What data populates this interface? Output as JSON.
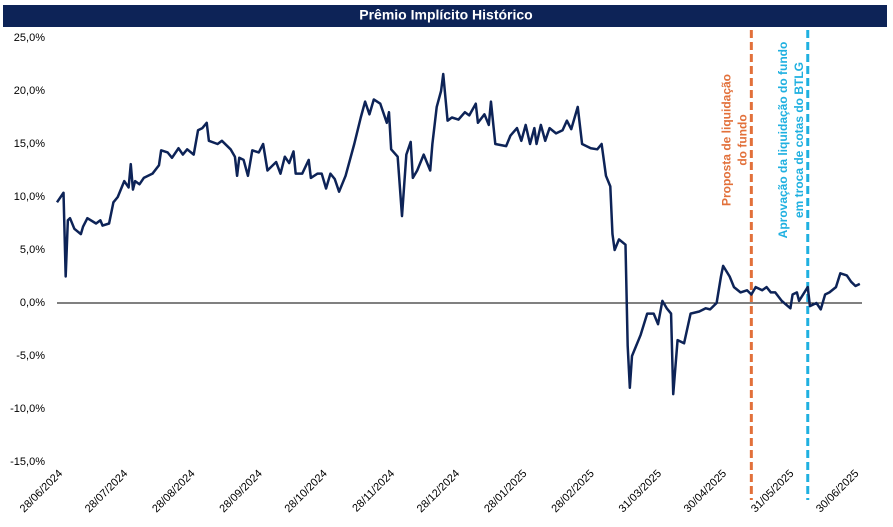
{
  "chart_data": {
    "type": "line",
    "title": "Prêmio Implícito Histórico",
    "x": [
      "2024-06-28",
      "2024-07-01",
      "2024-07-02",
      "2024-07-03",
      "2024-07-04",
      "2024-07-06",
      "2024-07-09",
      "2024-07-10",
      "2024-07-12",
      "2024-07-16",
      "2024-07-18",
      "2024-07-19",
      "2024-07-22",
      "2024-07-24",
      "2024-07-26",
      "2024-07-29",
      "2024-07-31",
      "2024-08-01",
      "2024-08-02",
      "2024-08-03",
      "2024-08-05",
      "2024-08-07",
      "2024-08-11",
      "2024-08-14",
      "2024-08-15",
      "2024-08-18",
      "2024-08-20",
      "2024-08-23",
      "2024-08-25",
      "2024-08-27",
      "2024-08-30",
      "2024-09-01",
      "2024-09-03",
      "2024-09-05",
      "2024-09-06",
      "2024-09-10",
      "2024-09-12",
      "2024-09-16",
      "2024-09-18",
      "2024-09-19",
      "2024-09-20",
      "2024-09-22",
      "2024-09-24",
      "2024-09-26",
      "2024-09-29",
      "2024-10-01",
      "2024-10-03",
      "2024-10-07",
      "2024-10-09",
      "2024-10-11",
      "2024-10-13",
      "2024-10-15",
      "2024-10-16",
      "2024-10-19",
      "2024-10-22",
      "2024-10-23",
      "2024-10-26",
      "2024-10-28",
      "2024-10-30",
      "2024-11-01",
      "2024-11-03",
      "2024-11-05",
      "2024-11-08",
      "2024-11-10",
      "2024-11-12",
      "2024-11-15",
      "2024-11-17",
      "2024-11-19",
      "2024-11-21",
      "2024-11-24",
      "2024-11-27",
      "2024-11-28",
      "2024-11-29",
      "2024-12-02",
      "2024-12-04",
      "2024-12-06",
      "2024-12-08",
      "2024-12-09",
      "2024-12-11",
      "2024-12-14",
      "2024-12-17",
      "2024-12-18",
      "2024-12-20",
      "2024-12-22",
      "2024-12-23",
      "2024-12-25",
      "2024-12-27",
      "2024-12-30",
      "2025-01-02",
      "2025-01-04",
      "2025-01-07",
      "2025-01-08",
      "2025-01-11",
      "2025-01-13",
      "2025-01-14",
      "2025-01-16",
      "2025-01-21",
      "2025-01-23",
      "2025-01-26",
      "2025-01-28",
      "2025-01-30",
      "2025-02-01",
      "2025-02-03",
      "2025-02-04",
      "2025-02-06",
      "2025-02-08",
      "2025-02-10",
      "2025-02-13",
      "2025-02-16",
      "2025-02-18",
      "2025-02-20",
      "2025-02-23",
      "2025-02-25",
      "2025-03-01",
      "2025-03-04",
      "2025-03-06",
      "2025-03-08",
      "2025-03-10",
      "2025-03-11",
      "2025-03-12",
      "2025-03-14",
      "2025-03-17",
      "2025-03-18",
      "2025-03-19",
      "2025-03-20",
      "2025-03-24",
      "2025-03-27",
      "2025-03-30",
      "2025-04-01",
      "2025-04-03",
      "2025-04-05",
      "2025-04-07",
      "2025-04-08",
      "2025-04-10",
      "2025-04-13",
      "2025-04-16",
      "2025-04-20",
      "2025-04-23",
      "2025-04-25",
      "2025-04-28",
      "2025-04-30",
      "2025-05-01",
      "2025-05-04",
      "2025-05-06",
      "2025-05-09",
      "2025-05-12",
      "2025-05-14",
      "2025-05-16",
      "2025-05-19",
      "2025-05-21",
      "2025-05-23",
      "2025-05-25",
      "2025-05-28",
      "2025-06-01",
      "2025-06-02",
      "2025-06-04",
      "2025-06-05",
      "2025-06-09",
      "2025-06-10",
      "2025-06-13",
      "2025-06-15",
      "2025-06-17",
      "2025-06-19",
      "2025-06-22",
      "2025-06-24",
      "2025-06-27",
      "2025-06-29",
      "2025-07-01",
      "2025-07-03"
    ],
    "series": [
      {
        "color": "#0d2357",
        "values": [
          9.5,
          10.4,
          2.5,
          7.8,
          8.0,
          7.0,
          6.5,
          7.2,
          8.0,
          7.5,
          7.8,
          7.3,
          7.5,
          9.5,
          10.0,
          11.5,
          10.9,
          13.1,
          10.7,
          11.5,
          11.2,
          11.8,
          12.2,
          13.0,
          14.4,
          14.2,
          13.7,
          14.6,
          14.0,
          14.5,
          14.0,
          16.3,
          16.5,
          17.0,
          15.3,
          15.0,
          15.3,
          14.5,
          13.8,
          12.0,
          13.7,
          13.5,
          12.0,
          14.4,
          14.2,
          15.0,
          12.5,
          13.3,
          12.2,
          13.8,
          13.2,
          14.3,
          12.2,
          12.2,
          13.5,
          11.8,
          12.2,
          12.2,
          10.8,
          12.2,
          11.7,
          10.5,
          12.0,
          13.5,
          15.0,
          17.5,
          19.0,
          17.8,
          19.2,
          18.8,
          17.0,
          18.0,
          14.5,
          13.8,
          8.2,
          14.0,
          15.2,
          11.8,
          12.5,
          14.0,
          12.5,
          15.0,
          18.5,
          20.0,
          21.6,
          17.2,
          17.5,
          17.3,
          18.0,
          17.7,
          18.8,
          17.0,
          17.8,
          16.8,
          19.0,
          15.0,
          14.8,
          15.8,
          16.5,
          15.3,
          16.8,
          15.0,
          16.5,
          15.0,
          16.8,
          15.3,
          16.5,
          16.0,
          16.3,
          17.2,
          16.4,
          18.5,
          15.0,
          14.6,
          14.5,
          15.0,
          12.0,
          11.0,
          6.5,
          5.0,
          6.0,
          5.5,
          -4.0,
          -8.0,
          -5.0,
          -3.0,
          -1.0,
          -1.0,
          -2.0,
          0.2,
          -0.5,
          -1.0,
          -8.6,
          -3.5,
          -3.8,
          -1.0,
          -0.8,
          -0.5,
          -0.6,
          0.0,
          2.5,
          3.5,
          2.5,
          1.5,
          1.0,
          1.2,
          0.8,
          1.5,
          1.2,
          1.5,
          1.0,
          1.0,
          0.2,
          -0.5,
          0.8,
          1.0,
          0.2,
          1.5,
          -0.3,
          0.0,
          -0.6,
          0.8,
          1.0,
          1.5,
          2.8,
          2.6,
          2.0,
          1.6,
          1.8
        ]
      }
    ],
    "xlim": [
      "2024-06-28",
      "2025-07-04"
    ],
    "xticks": [
      {
        "value": "2024-06-28",
        "label": "28/06/2024"
      },
      {
        "value": "2024-07-28",
        "label": "28/07/2024"
      },
      {
        "value": "2024-08-28",
        "label": "28/08/2024"
      },
      {
        "value": "2024-09-28",
        "label": "28/09/2024"
      },
      {
        "value": "2024-10-28",
        "label": "28/10/2024"
      },
      {
        "value": "2024-11-28",
        "label": "28/11/2024"
      },
      {
        "value": "2024-12-28",
        "label": "28/12/2024"
      },
      {
        "value": "2025-01-28",
        "label": "28/01/2025"
      },
      {
        "value": "2025-02-28",
        "label": "28/02/2025"
      },
      {
        "value": "2025-03-31",
        "label": "31/03/2025"
      },
      {
        "value": "2025-04-30",
        "label": "30/04/2025"
      },
      {
        "value": "2025-05-31",
        "label": "31/05/2025"
      },
      {
        "value": "2025-06-30",
        "label": "30/06/2025"
      }
    ],
    "ylim": [
      -15,
      25
    ],
    "yticks": [
      {
        "value": -15,
        "label": "-15,0%"
      },
      {
        "value": -10,
        "label": "-10,0%"
      },
      {
        "value": -5,
        "label": "-5,0%"
      },
      {
        "value": 0,
        "label": "0,0%"
      },
      {
        "value": 5,
        "label": "5,0%"
      },
      {
        "value": 10,
        "label": "10,0%"
      },
      {
        "value": 15,
        "label": "15,0%"
      },
      {
        "value": 20,
        "label": "20,0%"
      },
      {
        "value": 25,
        "label": "25,0%"
      }
    ],
    "annotations": [
      {
        "x": "2025-05-14",
        "color": "#e2703a",
        "lines": [
          "Proposta de liquidação",
          "do fundo"
        ]
      },
      {
        "x": "2025-06-09",
        "color": "#1fb0e0",
        "lines": [
          "Aprovação da liquidação do fundo",
          "em troca de cotas do BTLG"
        ]
      }
    ]
  }
}
